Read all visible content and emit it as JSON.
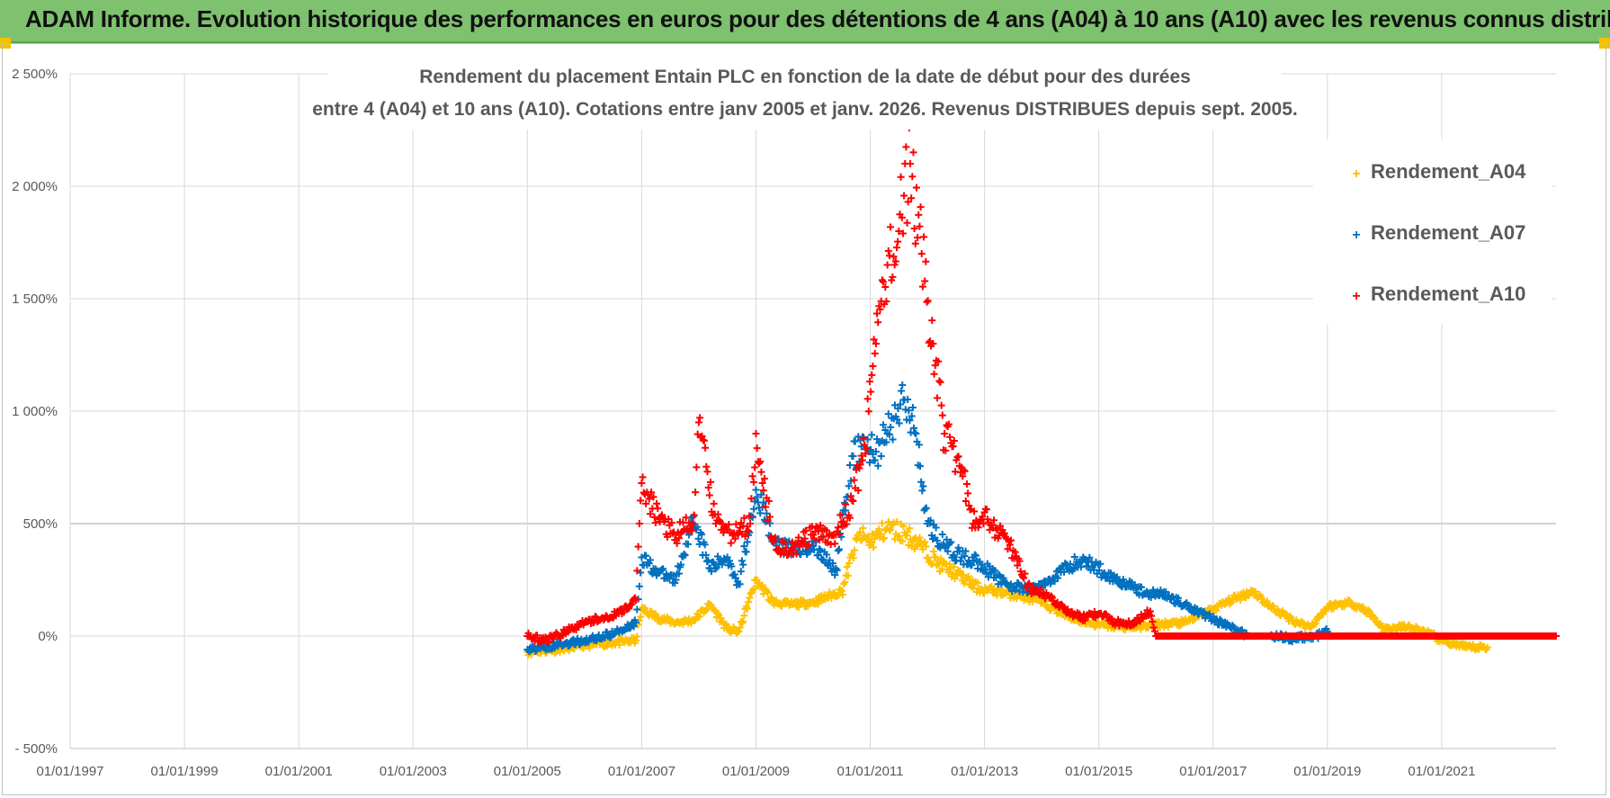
{
  "banner": {
    "title": "ADAM Informe. Evolution historique des performances en euros pour des détentions de 4 ans (A04) à 10 ans (A10) avec les revenus connus distribués"
  },
  "colors": {
    "banner_bg": "#7ec16f",
    "A04": "#ffc000",
    "A07": "#0070c0",
    "A10": "#ff0000",
    "grid": "#d9d9d9",
    "text": "#595959"
  },
  "chart_data": {
    "type": "scatter",
    "title_line1": "Rendement du placement Entain PLC en fonction de la date de début pour des durées",
    "title_line2": "entre 4 (A04) et 10 ans (A10). Cotations entre janv 2005 et janv. 2026. Revenus DISTRIBUES depuis sept. 2005.",
    "xlim": [
      1997.0,
      2023.0
    ],
    "ylim": [
      -500,
      2500
    ],
    "x_ticks": [
      1997,
      1999,
      2001,
      2003,
      2005,
      2007,
      2009,
      2011,
      2013,
      2015,
      2017,
      2019,
      2021
    ],
    "x_tick_labels": [
      "01/01/1997",
      "01/01/1999",
      "01/01/2001",
      "01/01/2003",
      "01/01/2005",
      "01/01/2007",
      "01/01/2009",
      "01/01/2011",
      "01/01/2013",
      "01/01/2015",
      "01/01/2017",
      "01/01/2019",
      "01/01/2021"
    ],
    "y_ticks": [
      -500,
      0,
      500,
      1000,
      1500,
      2000,
      2500
    ],
    "y_tick_labels": [
      "- 500%",
      "0%",
      "500%",
      "1 000%",
      "1 500%",
      "2 000%",
      "2 500%"
    ],
    "legend_position": "top-right",
    "series": [
      {
        "name": "Rendement_A04",
        "color": "#ffc000",
        "x": [
          2005.0,
          2005.5,
          2006.0,
          2006.5,
          2006.9,
          2007.0,
          2007.3,
          2007.6,
          2007.9,
          2008.2,
          2008.5,
          2008.7,
          2009.0,
          2009.3,
          2009.6,
          2010.0,
          2010.5,
          2010.8,
          2011.0,
          2011.3,
          2011.6,
          2011.9,
          2012.2,
          2012.5,
          2012.9,
          2013.2,
          2013.6,
          2014.0,
          2014.5,
          2015.0,
          2015.5,
          2016.0,
          2016.5,
          2017.0,
          2017.4,
          2017.7,
          2018.0,
          2018.4,
          2018.7,
          2019.0,
          2019.4,
          2019.7,
          2020.0,
          2020.4,
          2020.7,
          2021.0,
          2021.4,
          2021.8
        ],
        "y": [
          -70,
          -60,
          -40,
          -30,
          -20,
          120,
          80,
          60,
          70,
          140,
          30,
          20,
          250,
          150,
          140,
          150,
          200,
          450,
          420,
          480,
          460,
          400,
          320,
          280,
          210,
          200,
          180,
          150,
          80,
          50,
          40,
          50,
          60,
          120,
          170,
          200,
          130,
          70,
          40,
          130,
          150,
          110,
          30,
          40,
          20,
          -20,
          -50,
          -50
        ]
      },
      {
        "name": "Rendement_A07",
        "color": "#0070c0",
        "x": [
          2005.0,
          2005.5,
          2006.0,
          2006.5,
          2006.9,
          2007.0,
          2007.3,
          2007.6,
          2007.9,
          2008.2,
          2008.5,
          2008.7,
          2009.0,
          2009.3,
          2009.6,
          2010.0,
          2010.4,
          2010.7,
          2010.9,
          2011.1,
          2011.3,
          2011.6,
          2011.8,
          2012.0,
          2012.3,
          2012.6,
          2012.9,
          2013.2,
          2013.5,
          2013.8,
          2014.1,
          2014.5,
          2014.8,
          2015.1,
          2015.5,
          2015.8,
          2016.1,
          2016.5,
          2016.9,
          2017.3,
          2017.6,
          2018.0,
          2018.4,
          2018.8,
          2019.0
        ],
        "y": [
          -60,
          -40,
          -20,
          10,
          60,
          350,
          280,
          250,
          530,
          300,
          350,
          230,
          650,
          420,
          380,
          400,
          300,
          800,
          850,
          820,
          900,
          1050,
          900,
          500,
          400,
          350,
          330,
          260,
          220,
          200,
          240,
          320,
          330,
          280,
          230,
          190,
          190,
          140,
          90,
          40,
          0,
          0,
          -10,
          0,
          20
        ]
      },
      {
        "name": "Rendement_A10",
        "color": "#ff0000",
        "x": [
          2005.0,
          2005.3,
          2005.6,
          2006.0,
          2006.3,
          2006.6,
          2006.9,
          2007.0,
          2007.3,
          2007.6,
          2007.9,
          2008.0,
          2008.3,
          2008.6,
          2008.9,
          2009.0,
          2009.3,
          2009.6,
          2010.0,
          2010.4,
          2010.7,
          2010.9,
          2011.1,
          2011.3,
          2011.5,
          2011.7,
          2011.9,
          2012.1,
          2012.3,
          2012.6,
          2012.8,
          2013.0,
          2013.2,
          2013.5,
          2013.8,
          2014.1,
          2014.4,
          2014.7,
          2015.0,
          2015.3,
          2015.6,
          2015.9,
          2016.0,
          2017.0,
          2018.0,
          2019.0,
          2020.0,
          2021.0,
          2022.0,
          2023.0
        ],
        "y": [
          0,
          -20,
          10,
          60,
          80,
          100,
          160,
          680,
          520,
          450,
          500,
          950,
          500,
          450,
          500,
          900,
          420,
          380,
          450,
          450,
          600,
          850,
          1300,
          1650,
          1800,
          2100,
          1700,
          1300,
          900,
          750,
          500,
          550,
          480,
          380,
          200,
          180,
          120,
          80,
          100,
          60,
          60,
          110,
          0,
          0,
          0,
          0,
          0,
          0,
          0,
          0
        ]
      }
    ]
  }
}
